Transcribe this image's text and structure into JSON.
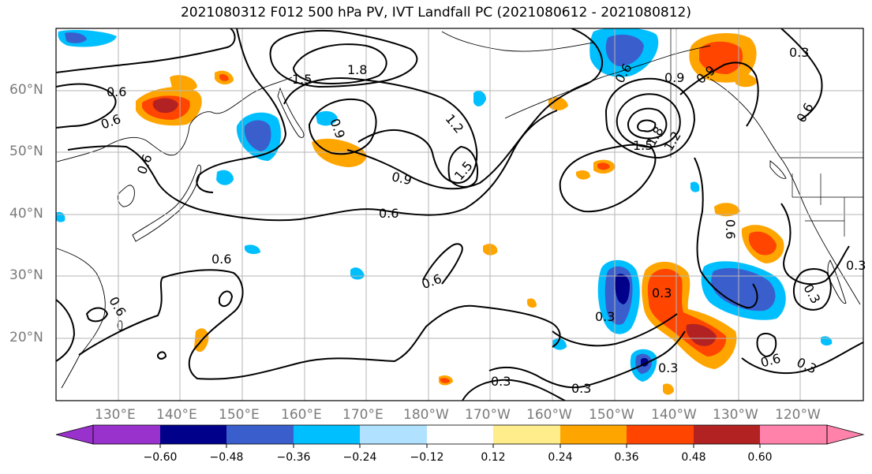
{
  "title": "2021080312 F012 500 hPa PV, IVT Landfall PC (2021080612 - 2021080812)",
  "lat_labels": [
    "60°N",
    "50°N",
    "40°N",
    "30°N",
    "20°N"
  ],
  "lon_labels": [
    "130°E",
    "140°E",
    "150°E",
    "160°E",
    "170°E",
    "180°W",
    "170°W",
    "160°W",
    "150°W",
    "140°W",
    "130°W",
    "120°W"
  ],
  "colorbar": {
    "ticks": [
      "−0.60",
      "−0.48",
      "−0.36",
      "−0.24",
      "−0.12",
      "0.12",
      "0.24",
      "0.36",
      "0.48",
      "0.60"
    ],
    "colors": [
      "#9932cc",
      "#00008b",
      "#3a5fcd",
      "#00bfff",
      "#b0e2ff",
      "#ffffff",
      "#ffec8b",
      "#ffa500",
      "#ff4500",
      "#b22222",
      "#ff82ab"
    ]
  },
  "contour_labels": [
    "1.8",
    "1.5",
    "0.6",
    "0.6",
    "0.6",
    "0.9",
    "1.2",
    "1.5",
    "0.9",
    "0.6",
    "0.6",
    "0.6",
    "0.6",
    "0.3",
    "0.3",
    "0.3",
    "0.3",
    "0.3",
    "0.3",
    "0.6",
    "0.3",
    "0.6",
    "0.9",
    "0.9",
    "0.3",
    "0.3",
    "1.5",
    "1.8",
    "1.2",
    "0.6",
    "0.6"
  ]
}
